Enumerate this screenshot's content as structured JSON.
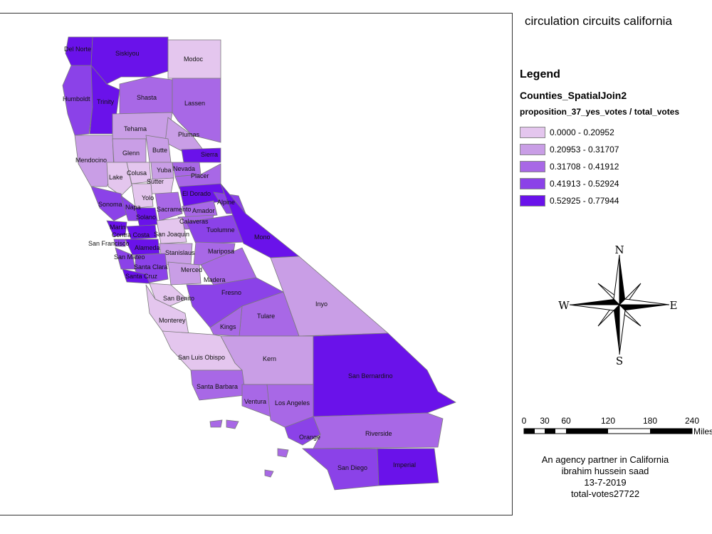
{
  "map": {
    "title": "circulation circuits california",
    "legend": {
      "heading": "Legend",
      "layer": "Counties_SpatialJoin2",
      "field": "proposition_37_yes_votes / total_votes",
      "classes": [
        {
          "label": "0.0000 - 0.20952",
          "color": "#e4c6ee"
        },
        {
          "label": "0.20953 - 0.31707",
          "color": "#c99ee6"
        },
        {
          "label": "0.31708 - 0.41912",
          "color": "#a868e6"
        },
        {
          "label": "0.41913 - 0.52924",
          "color": "#8b42e8"
        },
        {
          "label": "0.52925 - 0.77944",
          "color": "#6a12ea"
        }
      ]
    },
    "compass": {
      "n": "N",
      "s": "S",
      "e": "E",
      "w": "W"
    },
    "scale": {
      "ticks": [
        "0",
        "30",
        "60",
        "120",
        "180",
        "240"
      ],
      "unit": "Miles"
    },
    "credits": {
      "line1": "An agency partner in California",
      "line2": "ibrahim hussein saad",
      "line3": "13-7-2019",
      "line4": "total-votes27722"
    },
    "counties": {
      "del_norte": "Del Norte",
      "siskiyou": "Siskiyou",
      "modoc": "Modoc",
      "humboldt": "Humboldt",
      "trinity": "Trinity",
      "shasta": "Shasta",
      "lassen": "Lassen",
      "tehama": "Tehama",
      "plumas": "Plumas",
      "mendocino": "Mendocino",
      "glenn": "Glenn",
      "butte": "Butte",
      "sierra": "Sierra",
      "lake": "Lake",
      "colusa": "Colusa",
      "yuba": "Yuba",
      "nevada": "Nevada",
      "placer": "Placer",
      "sutter": "Sutter",
      "yolo": "Yolo",
      "el_dorado": "El Dorado",
      "sonoma": "Sonoma",
      "napa": "Napa",
      "alpine": "Alpine",
      "solano": "Solano",
      "sacramento": "Sacramento",
      "amador": "Amador",
      "marin": "Marin",
      "calaveras": "Calaveras",
      "contra_costa": "Contra Costa",
      "san_joaquin": "San Joaquin",
      "tuolumne": "Tuolumne",
      "mono": "Mono",
      "san_francisco": "San Francisco",
      "alameda": "Alameda",
      "san_mateo": "San Mateo",
      "stanislaus": "Stanislaus",
      "mariposa": "Mariposa",
      "santa_clara": "Santa Clara",
      "santa_cruz": "Santa Cruz",
      "merced": "Merced",
      "madera": "Madera",
      "fresno": "Fresno",
      "san_benito": "San Benito",
      "inyo": "Inyo",
      "monterey": "Monterey",
      "tulare": "Tulare",
      "kings": "Kings",
      "kern": "Kern",
      "san_luis_obispo": "San Luis Obispo",
      "san_bernardino": "San Bernardino",
      "santa_barbara": "Santa Barbara",
      "ventura": "Ventura",
      "los_angeles": "Los Angeles",
      "orange": "Orange",
      "riverside": "Riverside",
      "san_diego": "San Diego",
      "imperial": "Imperial"
    }
  }
}
